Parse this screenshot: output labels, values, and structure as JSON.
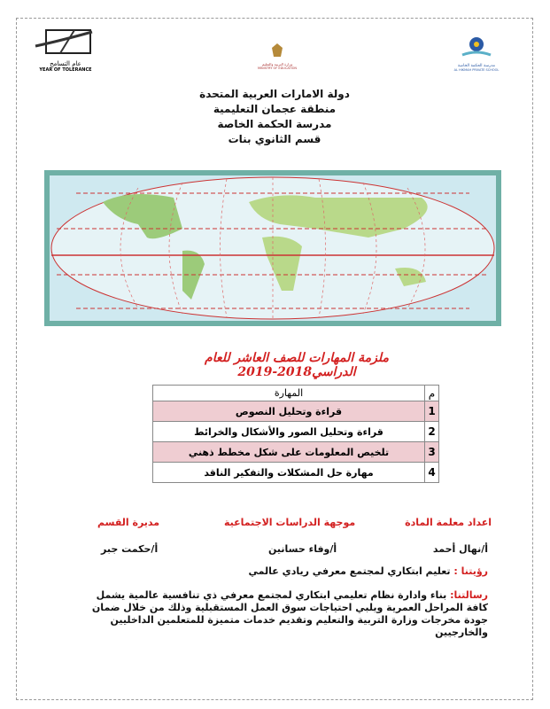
{
  "logos": {
    "left": {
      "arabic": "عام التسامح",
      "english": "YEAR OF TOLERANCE"
    },
    "center": {
      "arabic": "وزارة التربية والتعليم",
      "english": "MINISTRY OF EDUCATION"
    },
    "right": {
      "arabic": "مدرسة الحكمة الخاصة",
      "english": "AL HIKMAH PRIVATE SCHOOL"
    }
  },
  "header": {
    "line1": "دولة الامارات العربية المتحدة",
    "line2": "منطقة عجمان التعليمية",
    "line3": "مدرسة الحكمة الخاصة",
    "line4": "قسم الثانوي بنات"
  },
  "title": "ملزمة المهارات للصف العاشر للعام الدراسي2018-2019",
  "table": {
    "headers": {
      "num": "م",
      "skill": "المهارة"
    },
    "rows": [
      {
        "num": "1",
        "skill": "قراءة وتحليل النصوص"
      },
      {
        "num": "2",
        "skill": "قراءة وتحليل الصور والأشكال والخرائط"
      },
      {
        "num": "3",
        "skill": "تلخيص المعلومات على شكل مخطط ذهني"
      },
      {
        "num": "4",
        "skill": "مهارة حل المشكلات والتفكير الناقد"
      }
    ]
  },
  "staff": {
    "teacher_label": "اعداد معلمة المادة",
    "supervisor_label": "موجهة الدراسات الاجتماعية",
    "head_label": "مديرة القسم",
    "teacher": "أ/نهال أحمد",
    "supervisor": "أ/وفاء حسانين",
    "head": "أ/حكمت جبر"
  },
  "vision": {
    "label": "رؤيتنا :",
    "text": " تعليم ابتكاري لمجتمع معرفي ريادي عالمي"
  },
  "mission": {
    "label": "رسالتنا:",
    "text": " بناء وادارة نظام تعليمي ابتكاري لمجتمع معرفي ذي تنافسية عالمية يشمل كافة المراحل العمرية ويلبي احتياجات سوق العمل المستقبلية وذلك من خلال ضمان جودة مخرجات وزارة التربية والتعليم وتقديم خدمات متميزة للمتعلمين الداخليين والخارجيين"
  },
  "colors": {
    "accent": "#d32020",
    "row_highlight": "#efcdd2"
  }
}
